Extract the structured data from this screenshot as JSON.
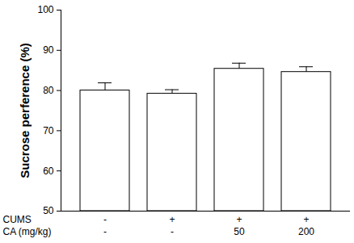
{
  "chart_data": {
    "type": "bar",
    "y_label": "Sucrose perference (%)",
    "categories": [
      null,
      null,
      null,
      null
    ],
    "category_rows": [
      {
        "name": "CUMS",
        "labels": [
          "-",
          "+",
          "+",
          "+"
        ]
      },
      {
        "name": "CA (mg/kg)",
        "labels": [
          "-",
          "-",
          "50",
          "200"
        ]
      }
    ],
    "values": [
      80.0,
      79.2,
      85.4,
      84.6
    ],
    "errors": [
      1.9,
      1.0,
      1.4,
      1.3
    ],
    "color": "#ffffff",
    "ylim": [
      50,
      100
    ],
    "yticks": [
      50,
      60,
      70,
      80,
      90,
      100
    ],
    "grid": false
  }
}
